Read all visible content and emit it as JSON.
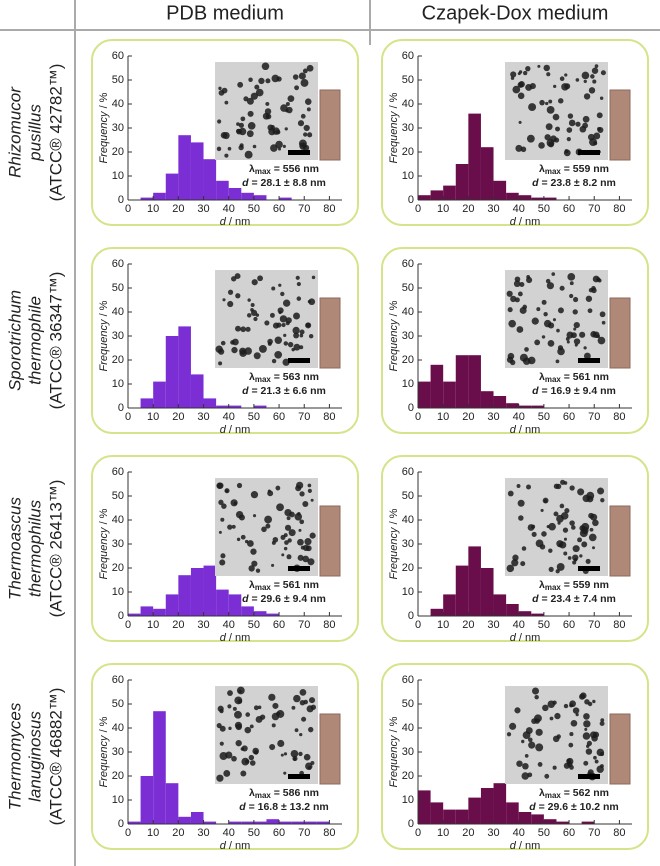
{
  "columns": [
    "PDB medium",
    "Czapek-Dox medium"
  ],
  "rows": [
    {
      "name": [
        "Rhizomucor",
        "pusillus"
      ],
      "strain": "(ATCC® 42782™)"
    },
    {
      "name": [
        "Sporotrichum",
        "thermophile"
      ],
      "strain": "(ATCC® 36347™)"
    },
    {
      "name": [
        "Thermoascus",
        "thermophilus"
      ],
      "strain": "(ATCC® 26413™)"
    },
    {
      "name": [
        "Thermomyces",
        "lanuginosus"
      ],
      "strain": "(ATCC® 46882™)"
    }
  ],
  "chart_data": [
    {
      "type": "histogram",
      "color": "#7a2ed4",
      "bins": [
        0,
        5,
        10,
        15,
        20,
        25,
        30,
        35,
        40,
        45,
        50,
        55,
        60,
        65,
        70,
        75,
        80
      ],
      "values": [
        0,
        1,
        3,
        11,
        27,
        24,
        17,
        8,
        5,
        3,
        2,
        0,
        1,
        0,
        0,
        0
      ],
      "xlim": [
        0,
        85
      ],
      "ylim": [
        0,
        60
      ],
      "xticks": [
        0,
        10,
        20,
        30,
        40,
        50,
        60,
        70,
        80
      ],
      "yticks": [
        0,
        10,
        20,
        30,
        40,
        50,
        60
      ],
      "xlabel": [
        "d",
        " / nm"
      ],
      "ylabel": [
        "Frequency",
        " / %"
      ],
      "annotations": {
        "lambda_symbol": "λ",
        "lambda_subscript": "max",
        "lambda_value": " = 556 nm",
        "d_symbol": "d",
        "d_value": " = 28.1 ± 8.8 nm"
      }
    },
    {
      "type": "histogram",
      "color": "#6a0d4b",
      "bins": [
        0,
        5,
        10,
        15,
        20,
        25,
        30,
        35,
        40,
        45,
        50,
        55,
        60,
        65,
        70,
        75,
        80
      ],
      "values": [
        2,
        4,
        6,
        15,
        36,
        22,
        8,
        3,
        2,
        1,
        1,
        0,
        0,
        0,
        0,
        0
      ],
      "xlim": [
        0,
        85
      ],
      "ylim": [
        0,
        60
      ],
      "xticks": [
        0,
        10,
        20,
        30,
        40,
        50,
        60,
        70,
        80
      ],
      "yticks": [
        0,
        10,
        20,
        30,
        40,
        50,
        60
      ],
      "xlabel": [
        "d",
        " / nm"
      ],
      "ylabel": [
        "Frequency",
        " / %"
      ],
      "annotations": {
        "lambda_symbol": "λ",
        "lambda_subscript": "max",
        "lambda_value": " = 559 nm",
        "d_symbol": "d",
        "d_value": " = 23.8 ± 8.2 nm"
      }
    },
    {
      "type": "histogram",
      "color": "#7a2ed4",
      "bins": [
        0,
        5,
        10,
        15,
        20,
        25,
        30,
        35,
        40,
        45,
        50,
        55,
        60,
        65,
        70,
        75,
        80
      ],
      "values": [
        0,
        4,
        11,
        30,
        34,
        14,
        4,
        1,
        1,
        0,
        1,
        0,
        0,
        0,
        0,
        0
      ],
      "xlim": [
        0,
        85
      ],
      "ylim": [
        0,
        60
      ],
      "xticks": [
        0,
        10,
        20,
        30,
        40,
        50,
        60,
        70,
        80
      ],
      "yticks": [
        0,
        10,
        20,
        30,
        40,
        50,
        60
      ],
      "xlabel": [
        "d",
        " / nm"
      ],
      "ylabel": [
        "Frequency",
        " / %"
      ],
      "annotations": {
        "lambda_symbol": "λ",
        "lambda_subscript": "max",
        "lambda_value": " = 563 nm",
        "d_symbol": "d",
        "d_value": " = 21.3 ± 6.6 nm"
      }
    },
    {
      "type": "histogram",
      "color": "#6a0d4b",
      "bins": [
        0,
        5,
        10,
        15,
        20,
        25,
        30,
        35,
        40,
        45,
        50,
        55,
        60,
        65,
        70,
        75,
        80
      ],
      "values": [
        11,
        18,
        11,
        22,
        22,
        7,
        5,
        2,
        1,
        1,
        0,
        0,
        0,
        0,
        0,
        0
      ],
      "xlim": [
        0,
        85
      ],
      "ylim": [
        0,
        60
      ],
      "xticks": [
        0,
        10,
        20,
        30,
        40,
        50,
        60,
        70,
        80
      ],
      "yticks": [
        0,
        10,
        20,
        30,
        40,
        50,
        60
      ],
      "xlabel": [
        "d",
        " / nm"
      ],
      "ylabel": [
        "Frequency",
        " / %"
      ],
      "annotations": {
        "lambda_symbol": "λ",
        "lambda_subscript": "max",
        "lambda_value": " = 561 nm",
        "d_symbol": "d",
        "d_value": " = 16.9 ± 9.4 nm"
      }
    },
    {
      "type": "histogram",
      "color": "#7a2ed4",
      "bins": [
        0,
        5,
        10,
        15,
        20,
        25,
        30,
        35,
        40,
        45,
        50,
        55,
        60,
        65,
        70,
        75,
        80
      ],
      "values": [
        1,
        4,
        3,
        9,
        17,
        20,
        21,
        11,
        9,
        4,
        2,
        1,
        0,
        0,
        0,
        0
      ],
      "xlim": [
        0,
        85
      ],
      "ylim": [
        0,
        60
      ],
      "xticks": [
        0,
        10,
        20,
        30,
        40,
        50,
        60,
        70,
        80
      ],
      "yticks": [
        0,
        10,
        20,
        30,
        40,
        50,
        60
      ],
      "xlabel": [
        "d",
        " / nm"
      ],
      "ylabel": [
        "Frequency",
        " / %"
      ],
      "annotations": {
        "lambda_symbol": "λ",
        "lambda_subscript": "max",
        "lambda_value": " = 561 nm",
        "d_symbol": "d",
        "d_value": " = 29.6 ± 9.4 nm"
      }
    },
    {
      "type": "histogram",
      "color": "#6a0d4b",
      "bins": [
        0,
        5,
        10,
        15,
        20,
        25,
        30,
        35,
        40,
        45,
        50,
        55,
        60,
        65,
        70,
        75,
        80
      ],
      "values": [
        0,
        3,
        9,
        21,
        29,
        20,
        9,
        5,
        2,
        1,
        0,
        0,
        0,
        0,
        0,
        0
      ],
      "xlim": [
        0,
        85
      ],
      "ylim": [
        0,
        60
      ],
      "xticks": [
        0,
        10,
        20,
        30,
        40,
        50,
        60,
        70,
        80
      ],
      "yticks": [
        0,
        10,
        20,
        30,
        40,
        50,
        60
      ],
      "xlabel": [
        "d",
        " / nm"
      ],
      "ylabel": [
        "Frequency",
        " / %"
      ],
      "annotations": {
        "lambda_symbol": "λ",
        "lambda_subscript": "max",
        "lambda_value": " = 559 nm",
        "d_symbol": "d",
        "d_value": " = 23.4 ± 7.4 nm"
      }
    },
    {
      "type": "histogram",
      "color": "#7a2ed4",
      "bins": [
        0,
        5,
        10,
        15,
        20,
        25,
        30,
        35,
        40,
        45,
        50,
        55,
        60,
        65,
        70,
        75,
        80
      ],
      "values": [
        1,
        20,
        47,
        17,
        3,
        5,
        1,
        0,
        1,
        1,
        1,
        2,
        1,
        1,
        1,
        1
      ],
      "xlim": [
        0,
        85
      ],
      "ylim": [
        0,
        60
      ],
      "xticks": [
        0,
        10,
        20,
        30,
        40,
        50,
        60,
        70,
        80
      ],
      "yticks": [
        0,
        10,
        20,
        30,
        40,
        50,
        60
      ],
      "xlabel": [
        "d",
        " / nm"
      ],
      "ylabel": [
        "Frequency",
        " / %"
      ],
      "annotations": {
        "lambda_symbol": "λ",
        "lambda_subscript": "max",
        "lambda_value": " = 586 nm",
        "d_symbol": "d",
        "d_value": " = 16.8 ± 13.2 nm"
      }
    },
    {
      "type": "histogram",
      "color": "#6a0d4b",
      "bins": [
        0,
        5,
        10,
        15,
        20,
        25,
        30,
        35,
        40,
        45,
        50,
        55,
        60,
        65,
        70,
        75,
        80
      ],
      "values": [
        14,
        9,
        6,
        6,
        11,
        15,
        17,
        9,
        5,
        4,
        2,
        1,
        0,
        1,
        0,
        0
      ],
      "xlim": [
        0,
        85
      ],
      "ylim": [
        0,
        60
      ],
      "xticks": [
        0,
        10,
        20,
        30,
        40,
        50,
        60,
        70,
        80
      ],
      "yticks": [
        0,
        10,
        20,
        30,
        40,
        50,
        60
      ],
      "xlabel": [
        "d",
        " / nm"
      ],
      "ylabel": [
        "Frequency",
        " / %"
      ],
      "annotations": {
        "lambda_symbol": "λ",
        "lambda_subscript": "max",
        "lambda_value": " = 562 nm",
        "d_symbol": "d",
        "d_value": " = 29.6 ± 10.2 nm"
      }
    }
  ]
}
